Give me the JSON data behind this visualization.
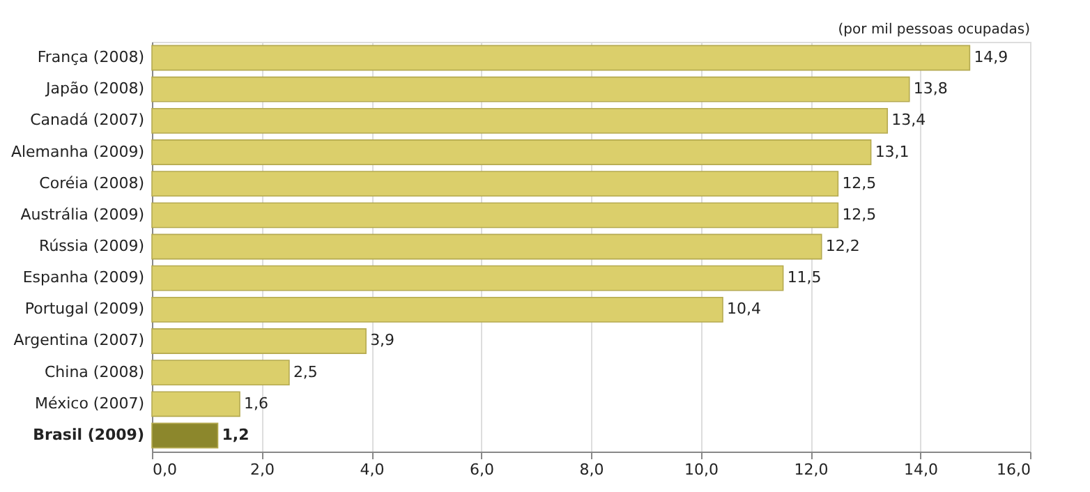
{
  "chart_data": {
    "type": "bar",
    "orientation": "horizontal",
    "categories": [
      "França (2008)",
      "Japão (2008)",
      "Canadá (2007)",
      "Alemanha (2009)",
      "Coréia (2008)",
      "Austrália  (2009)",
      "Rússia (2009)",
      "Espanha (2009)",
      "Portugal (2009)",
      "Argentina  (2007)",
      "China (2008)",
      "México (2007)",
      "Brasil (2009)"
    ],
    "values": [
      14.9,
      13.8,
      13.4,
      13.1,
      12.5,
      12.5,
      12.2,
      11.5,
      10.4,
      3.9,
      2.5,
      1.6,
      1.2
    ],
    "value_labels": [
      "14,9",
      "13,8",
      "13,4",
      "13,1",
      "12,5",
      "12,5",
      "12,2",
      "11,5",
      "10,4",
      "3,9",
      "2,5",
      "1,6",
      "1,2"
    ],
    "colors": [
      "#dbcf6b",
      "#dbcf6b",
      "#dbcf6b",
      "#dbcf6b",
      "#dbcf6b",
      "#dbcf6b",
      "#dbcf6b",
      "#dbcf6b",
      "#dbcf6b",
      "#dbcf6b",
      "#dbcf6b",
      "#dbcf6b",
      "#8c872c"
    ],
    "xlim": [
      0,
      16
    ],
    "xticks": [
      {
        "value": 0,
        "label": "0,0"
      },
      {
        "value": 2,
        "label": "2,0"
      },
      {
        "value": 4,
        "label": "4,0"
      },
      {
        "value": 6,
        "label": "6,0"
      },
      {
        "value": 8,
        "label": "8,0"
      },
      {
        "value": 10,
        "label": "10,0"
      },
      {
        "value": 12,
        "label": "12,0"
      },
      {
        "value": 14,
        "label": "14,0"
      },
      {
        "value": 16,
        "label": "16,0"
      }
    ],
    "grid": "x",
    "annotations": [
      "(por mil pessoas ocupadas)"
    ]
  }
}
